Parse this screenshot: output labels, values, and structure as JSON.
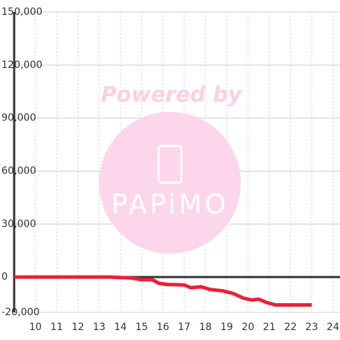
{
  "chart_data": {
    "type": "line",
    "watermark": {
      "top": "Powered by",
      "logo": "PAPiMO"
    },
    "xlim": [
      9,
      24.33
    ],
    "xticks": [
      10,
      11,
      12,
      13,
      14,
      15,
      16,
      17,
      18,
      19,
      20,
      21,
      22,
      23,
      24
    ],
    "ylim": [
      -20000,
      150000
    ],
    "yticks": [
      {
        "value": -20000,
        "label": "-20,000"
      },
      0,
      {
        "value": 30000,
        "label": "30,000"
      },
      {
        "value": 60000,
        "label": "60,000"
      },
      {
        "value": 90000,
        "label": "90,000"
      },
      {
        "value": 120000,
        "label": "120,000"
      },
      {
        "value": 150000,
        "label": "150,000"
      }
    ],
    "grid": true,
    "series": [
      {
        "color": "#e8213a",
        "x": [
          9,
          10,
          11,
          12,
          13,
          13.5,
          14,
          14.5,
          15,
          15.5,
          15.8,
          16.2,
          17,
          17.3,
          17.8,
          18.2,
          18.8,
          19.3,
          19.8,
          20.2,
          20.5,
          20.9,
          21.3,
          22,
          23
        ],
        "values": [
          0,
          0,
          0,
          0,
          0,
          0,
          -300,
          -500,
          -1500,
          -1500,
          -3500,
          -4200,
          -4500,
          -6000,
          -5500,
          -7000,
          -7800,
          -9300,
          -12000,
          -13000,
          -12500,
          -14500,
          -15800,
          -15800,
          -15800
        ]
      }
    ]
  }
}
